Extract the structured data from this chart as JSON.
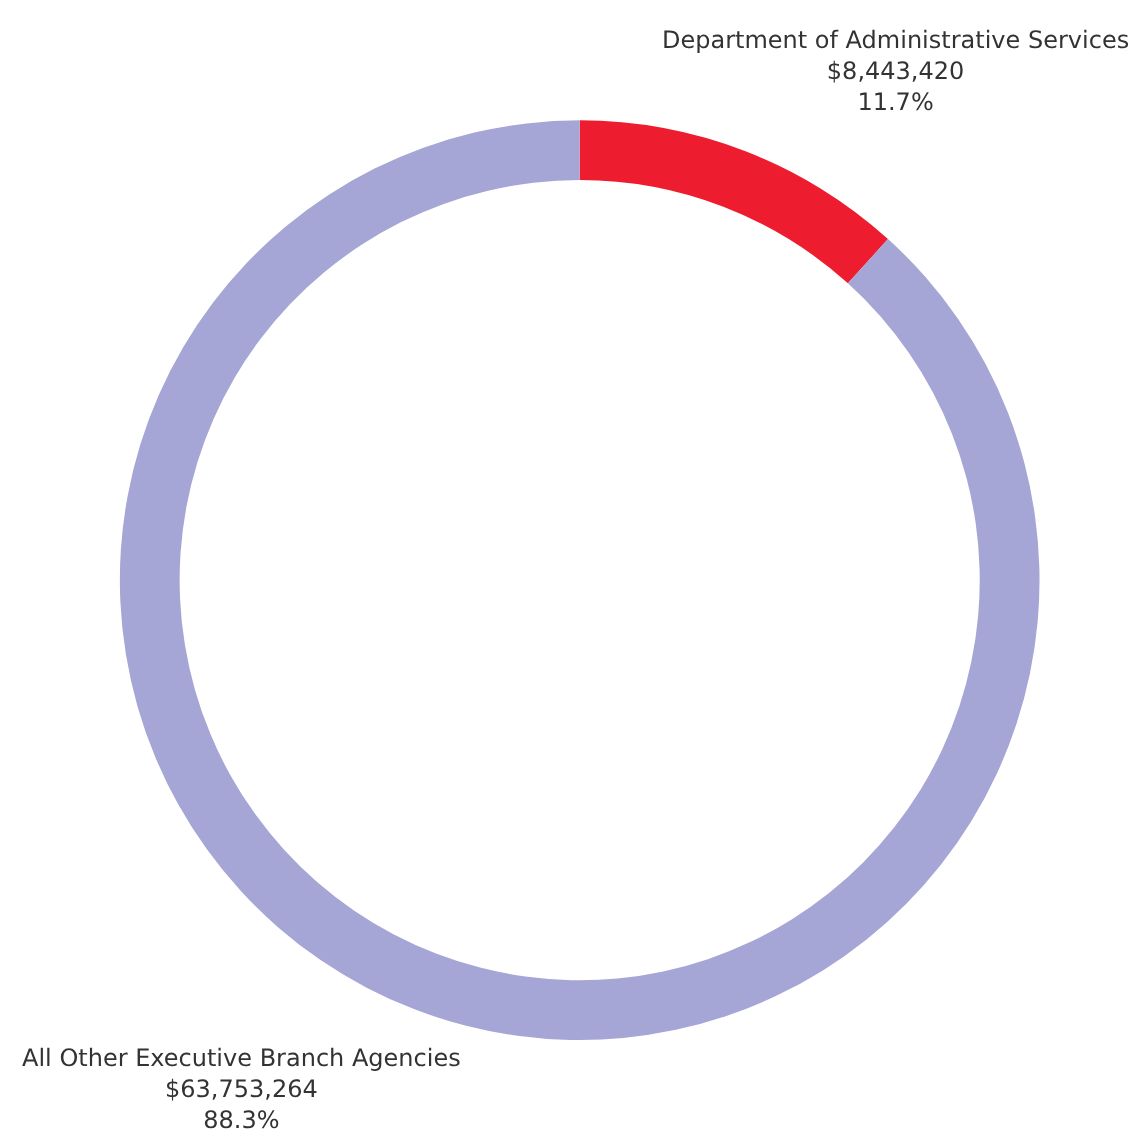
{
  "chart_data": {
    "type": "donut",
    "categories": [
      "Department of Administrative Services",
      "All Other Executive Branch Agencies"
    ],
    "values": [
      8443420,
      63753264
    ],
    "value_labels": [
      "$8,443,420\n11.7%",
      "$63,753,264\n88.3%"
    ],
    "colors": [
      "#ed1c2e",
      "#a5a5d6"
    ],
    "legend": false
  }
}
